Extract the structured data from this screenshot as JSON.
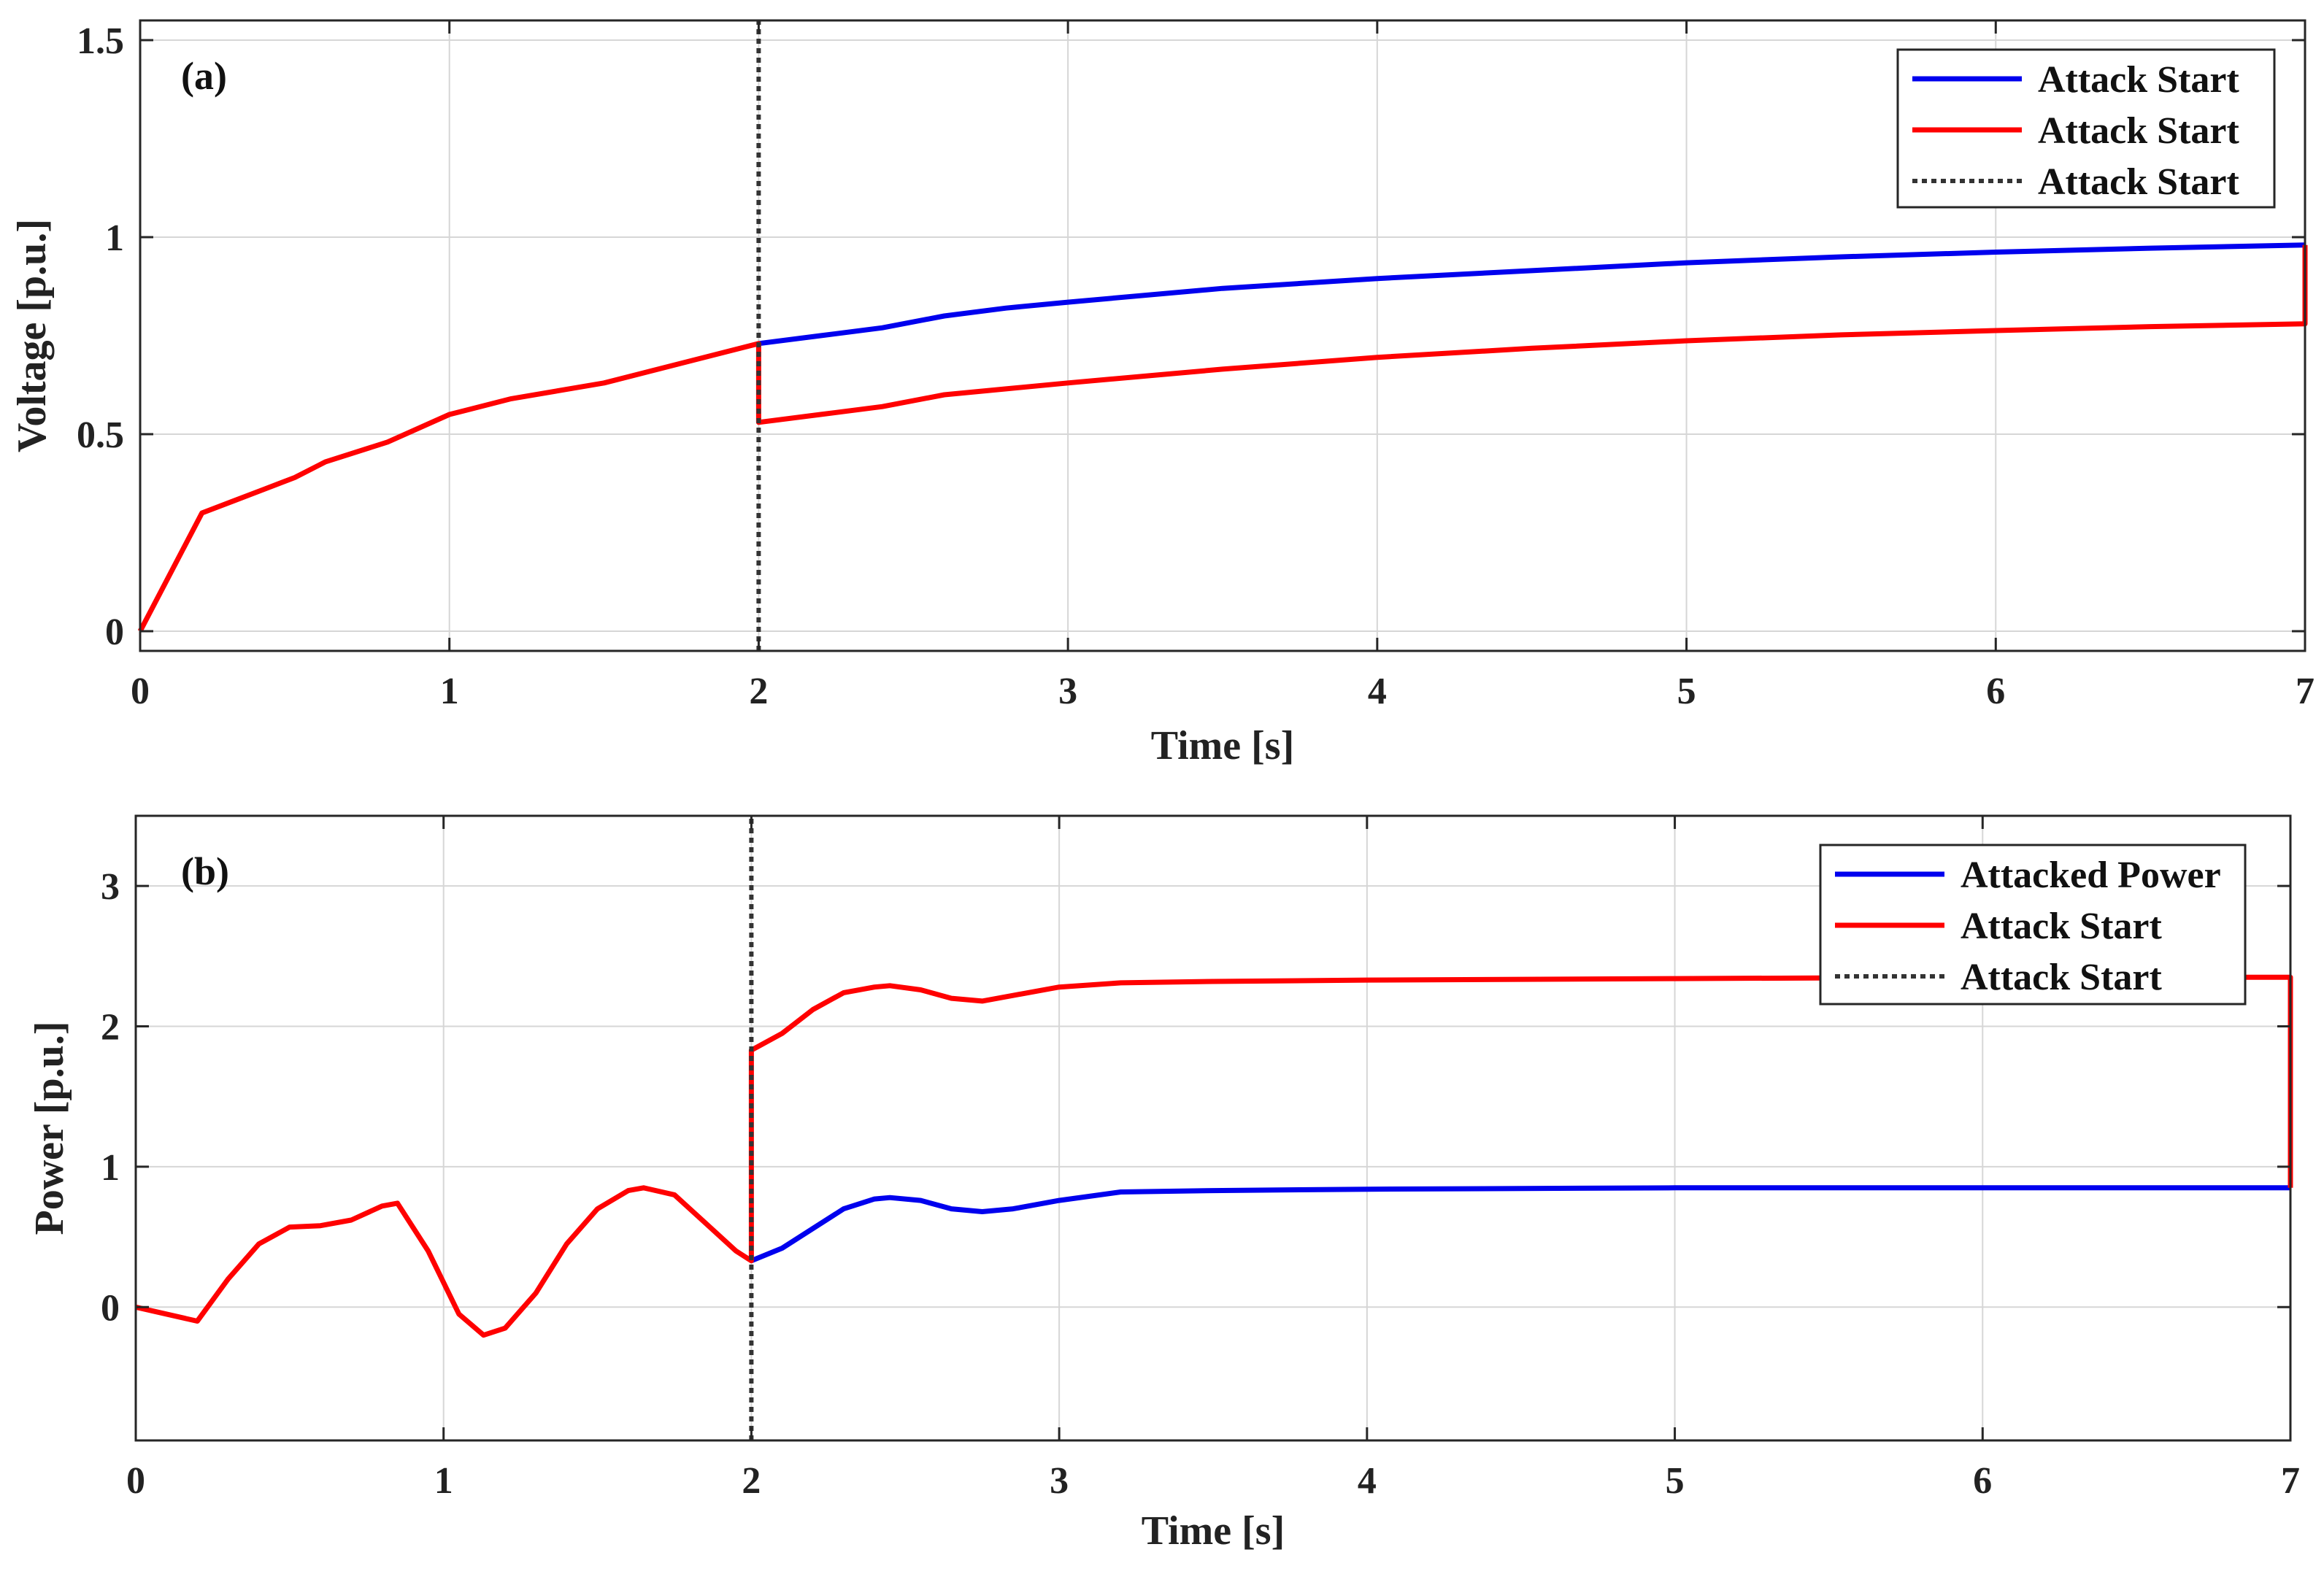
{
  "chart_data": [
    {
      "type": "line",
      "panel_label": "(a)",
      "xlabel": "Time [s]",
      "ylabel": "Voltage [p.u.]",
      "xlim": [
        0,
        7
      ],
      "ylim": [
        -0.05,
        1.55
      ],
      "xticks": [
        0,
        1,
        2,
        3,
        4,
        5,
        6,
        7
      ],
      "yticks": [
        0,
        0.5,
        1,
        1.5
      ],
      "ytick_labels": [
        "0",
        "0.5",
        "1",
        "1.5"
      ],
      "grid": true,
      "legend_position": "top-right",
      "legend": [
        "Attack Start",
        "Attack Start",
        "Attack Start"
      ],
      "series": [
        {
          "color": "#0000ee",
          "style": "solid",
          "x": [
            2.0,
            2.2,
            2.4,
            2.6,
            2.8,
            3.0,
            3.5,
            4.0,
            4.5,
            5.0,
            5.5,
            6.0,
            6.5,
            7.0
          ],
          "y": [
            0.73,
            0.75,
            0.77,
            0.8,
            0.82,
            0.835,
            0.87,
            0.895,
            0.915,
            0.935,
            0.95,
            0.962,
            0.972,
            0.98
          ]
        },
        {
          "color": "#ff0000",
          "style": "solid",
          "x": [
            0,
            0.2,
            0.3,
            0.4,
            0.5,
            0.6,
            0.8,
            1.0,
            1.2,
            1.5,
            1.8,
            2.0,
            2.0,
            2.2,
            2.4,
            2.6,
            2.8,
            3.0,
            3.5,
            4.0,
            4.5,
            5.0,
            5.5,
            6.0,
            6.5,
            7.0,
            7.0
          ],
          "y": [
            0,
            0.3,
            0.33,
            0.36,
            0.39,
            0.43,
            0.48,
            0.55,
            0.59,
            0.63,
            0.69,
            0.73,
            0.53,
            0.55,
            0.57,
            0.6,
            0.615,
            0.63,
            0.665,
            0.695,
            0.718,
            0.737,
            0.752,
            0.763,
            0.773,
            0.78,
            0.98
          ]
        },
        {
          "color": "#333333",
          "style": "dotted",
          "x": [
            2.0,
            2.0
          ],
          "y": [
            -0.05,
            1.55
          ]
        }
      ]
    },
    {
      "type": "line",
      "panel_label": "(b)",
      "xlabel": "Time [s]",
      "ylabel": "Power [p.u.]",
      "xlim": [
        0,
        7
      ],
      "ylim": [
        -0.95,
        3.5
      ],
      "xticks": [
        0,
        1,
        2,
        3,
        4,
        5,
        6,
        7
      ],
      "yticks": [
        0,
        1,
        2,
        3
      ],
      "ytick_labels": [
        "0",
        "1",
        "2",
        "3"
      ],
      "grid": true,
      "legend_position": "top-right",
      "legend": [
        "Attacked Power",
        "Attack Start",
        "Attack Start"
      ],
      "series": [
        {
          "color": "#0000ee",
          "style": "solid",
          "x": [
            2.0,
            2.1,
            2.2,
            2.3,
            2.4,
            2.45,
            2.55,
            2.65,
            2.75,
            2.85,
            3.0,
            3.2,
            3.5,
            4.0,
            5.0,
            6.0,
            7.0
          ],
          "y": [
            0.33,
            0.42,
            0.56,
            0.7,
            0.77,
            0.78,
            0.76,
            0.7,
            0.68,
            0.7,
            0.76,
            0.82,
            0.83,
            0.84,
            0.85,
            0.85,
            0.85
          ]
        },
        {
          "color": "#ff0000",
          "style": "solid",
          "x": [
            0,
            0.2,
            0.3,
            0.4,
            0.5,
            0.6,
            0.7,
            0.8,
            0.85,
            0.95,
            1.05,
            1.13,
            1.2,
            1.3,
            1.4,
            1.5,
            1.6,
            1.65,
            1.75,
            1.85,
            1.95,
            2.0,
            2.0,
            2.1,
            2.2,
            2.3,
            2.4,
            2.45,
            2.55,
            2.65,
            2.75,
            2.85,
            3.0,
            3.2,
            3.5,
            4.0,
            5.0,
            6.0,
            7.0,
            7.0
          ],
          "y": [
            0,
            -0.1,
            0.2,
            0.45,
            0.57,
            0.58,
            0.62,
            0.72,
            0.74,
            0.4,
            -0.05,
            -0.2,
            -0.15,
            0.1,
            0.45,
            0.7,
            0.83,
            0.85,
            0.8,
            0.6,
            0.4,
            0.33,
            1.83,
            1.95,
            2.12,
            2.24,
            2.28,
            2.29,
            2.26,
            2.2,
            2.18,
            2.22,
            2.28,
            2.31,
            2.32,
            2.33,
            2.34,
            2.35,
            2.35,
            0.85
          ]
        },
        {
          "color": "#333333",
          "style": "dotted",
          "x": [
            2.0,
            2.0
          ],
          "y": [
            -0.95,
            3.5
          ]
        }
      ]
    }
  ]
}
